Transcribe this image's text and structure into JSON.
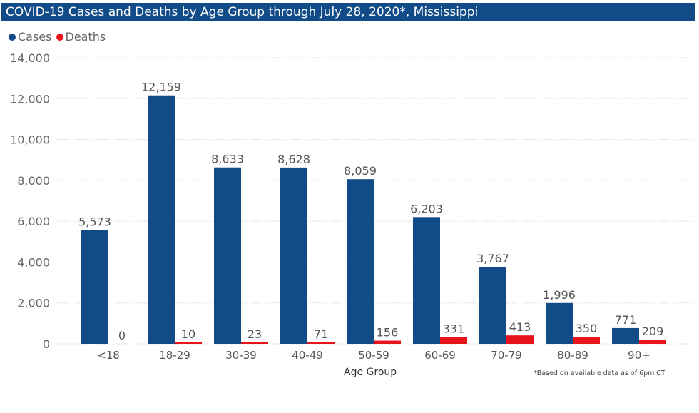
{
  "chart_data": {
    "type": "bar",
    "title": "COVID-19 Cases and Deaths by Age Group through July 28, 2020*, Mississippi",
    "xlabel": "Age Group",
    "ylabel": "",
    "categories": [
      "<18",
      "18-29",
      "30-39",
      "40-49",
      "50-59",
      "60-69",
      "70-79",
      "80-89",
      "90+"
    ],
    "series": [
      {
        "name": "Cases",
        "color": "#124c88",
        "values": [
          5573,
          12159,
          8633,
          8628,
          8059,
          6203,
          3767,
          1996,
          771
        ],
        "labels": [
          "5,573",
          "12,159",
          "8,633",
          "8,628",
          "8,059",
          "6,203",
          "3,767",
          "1,996",
          "771"
        ]
      },
      {
        "name": "Deaths",
        "color": "#e8141b",
        "values": [
          0,
          10,
          23,
          71,
          156,
          331,
          413,
          350,
          209
        ],
        "labels": [
          "0",
          "10",
          "23",
          "71",
          "156",
          "331",
          "413",
          "350",
          "209"
        ]
      }
    ],
    "ylim": [
      0,
      14000
    ],
    "yticks": [
      "0",
      "2,000",
      "4,000",
      "6,000",
      "8,000",
      "10,000",
      "12,000",
      "14,000"
    ],
    "ytick_values": [
      0,
      2000,
      4000,
      6000,
      8000,
      10000,
      12000,
      14000
    ],
    "grid": true,
    "legend_position": "top-left",
    "footnote": "*Based on available data as of 6pm CT"
  }
}
